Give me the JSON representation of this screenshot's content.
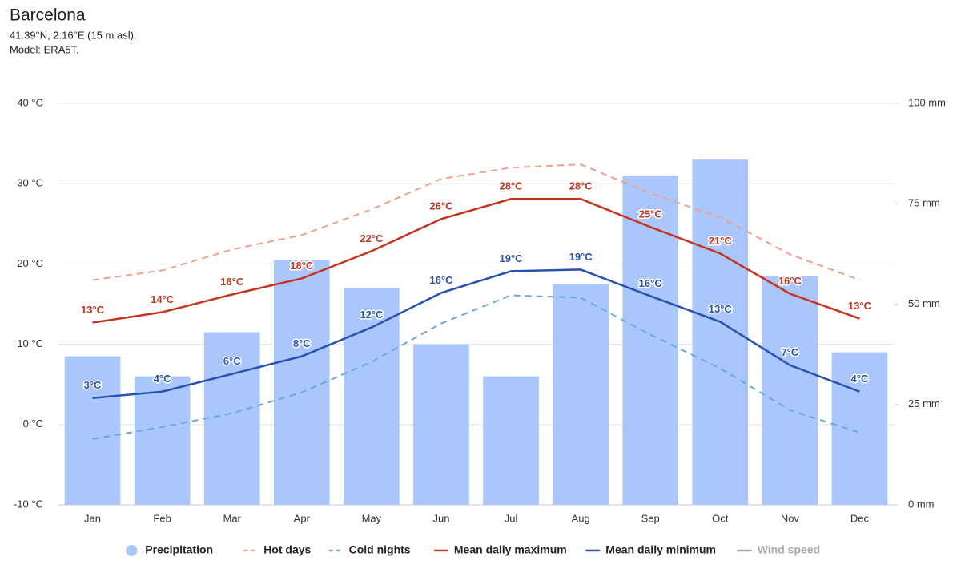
{
  "chart_data": {
    "type": "bar",
    "title": "Barcelona",
    "subtitle": [
      "41.39°N, 2.16°E (15 m asl).",
      "Model: ERA5T."
    ],
    "categories": [
      "Jan",
      "Feb",
      "Mar",
      "Apr",
      "May",
      "Jun",
      "Jul",
      "Aug",
      "Sep",
      "Oct",
      "Nov",
      "Dec"
    ],
    "ylim": [
      -10,
      40
    ],
    "yticks": [
      {
        "value": -10,
        "label": "-10 °C"
      },
      {
        "value": 0,
        "label": "0 °C"
      },
      {
        "value": 10,
        "label": "10 °C"
      },
      {
        "value": 20,
        "label": "20 °C"
      },
      {
        "value": 30,
        "label": "30 °C"
      },
      {
        "value": 40,
        "label": "40 °C"
      }
    ],
    "y2lim": [
      0,
      100
    ],
    "y2ticks": [
      {
        "value": 0,
        "label": "0 mm"
      },
      {
        "value": 25,
        "label": "25 mm"
      },
      {
        "value": 50,
        "label": "50 mm"
      },
      {
        "value": 75,
        "label": "75 mm"
      },
      {
        "value": 100,
        "label": "100 mm"
      }
    ],
    "grid": true,
    "legend": "bottom",
    "series": [
      {
        "name": "Precipitation",
        "type": "bar",
        "axis": "y2",
        "color": "#a9c7fb",
        "values": [
          37,
          32,
          43,
          61,
          54,
          40,
          32,
          55,
          82,
          86,
          57,
          38
        ]
      },
      {
        "name": "Hot days",
        "type": "line",
        "dash": true,
        "color": "#f0a08c",
        "values": [
          18,
          19.2,
          21.8,
          23.6,
          26.8,
          30.6,
          32,
          32.4,
          28.8,
          25.8,
          21.2,
          18
        ]
      },
      {
        "name": "Cold nights",
        "type": "line",
        "dash": true,
        "color": "#6aa9dd",
        "values": [
          -1.8,
          -0.3,
          1.4,
          4,
          7.8,
          12.6,
          16.1,
          15.8,
          11.2,
          7,
          1.8,
          -1
        ]
      },
      {
        "name": "Mean daily maximum",
        "type": "line",
        "color": "#c8321e",
        "values": [
          12.7,
          14,
          16.2,
          18.2,
          21.6,
          25.6,
          28.1,
          28.1,
          24.6,
          21.3,
          16.3,
          13.2
        ],
        "value_labels": [
          "13°C",
          "14°C",
          "16°C",
          "18°C",
          "22°C",
          "26°C",
          "28°C",
          "28°C",
          "25°C",
          "21°C",
          "16°C",
          "13°C"
        ]
      },
      {
        "name": "Mean daily minimum",
        "type": "line",
        "color": "#2a50b0",
        "values": [
          3.3,
          4.1,
          6.3,
          8.5,
          12.1,
          16.4,
          19.1,
          19.3,
          16,
          12.8,
          7.4,
          4.1
        ],
        "value_labels": [
          "3°C",
          "4°C",
          "6°C",
          "8°C",
          "12°C",
          "16°C",
          "19°C",
          "19°C",
          "16°C",
          "13°C",
          "7°C",
          "4°C"
        ]
      },
      {
        "name": "Wind speed",
        "type": "line",
        "color": "#aaaaaa",
        "hidden": true
      }
    ]
  }
}
